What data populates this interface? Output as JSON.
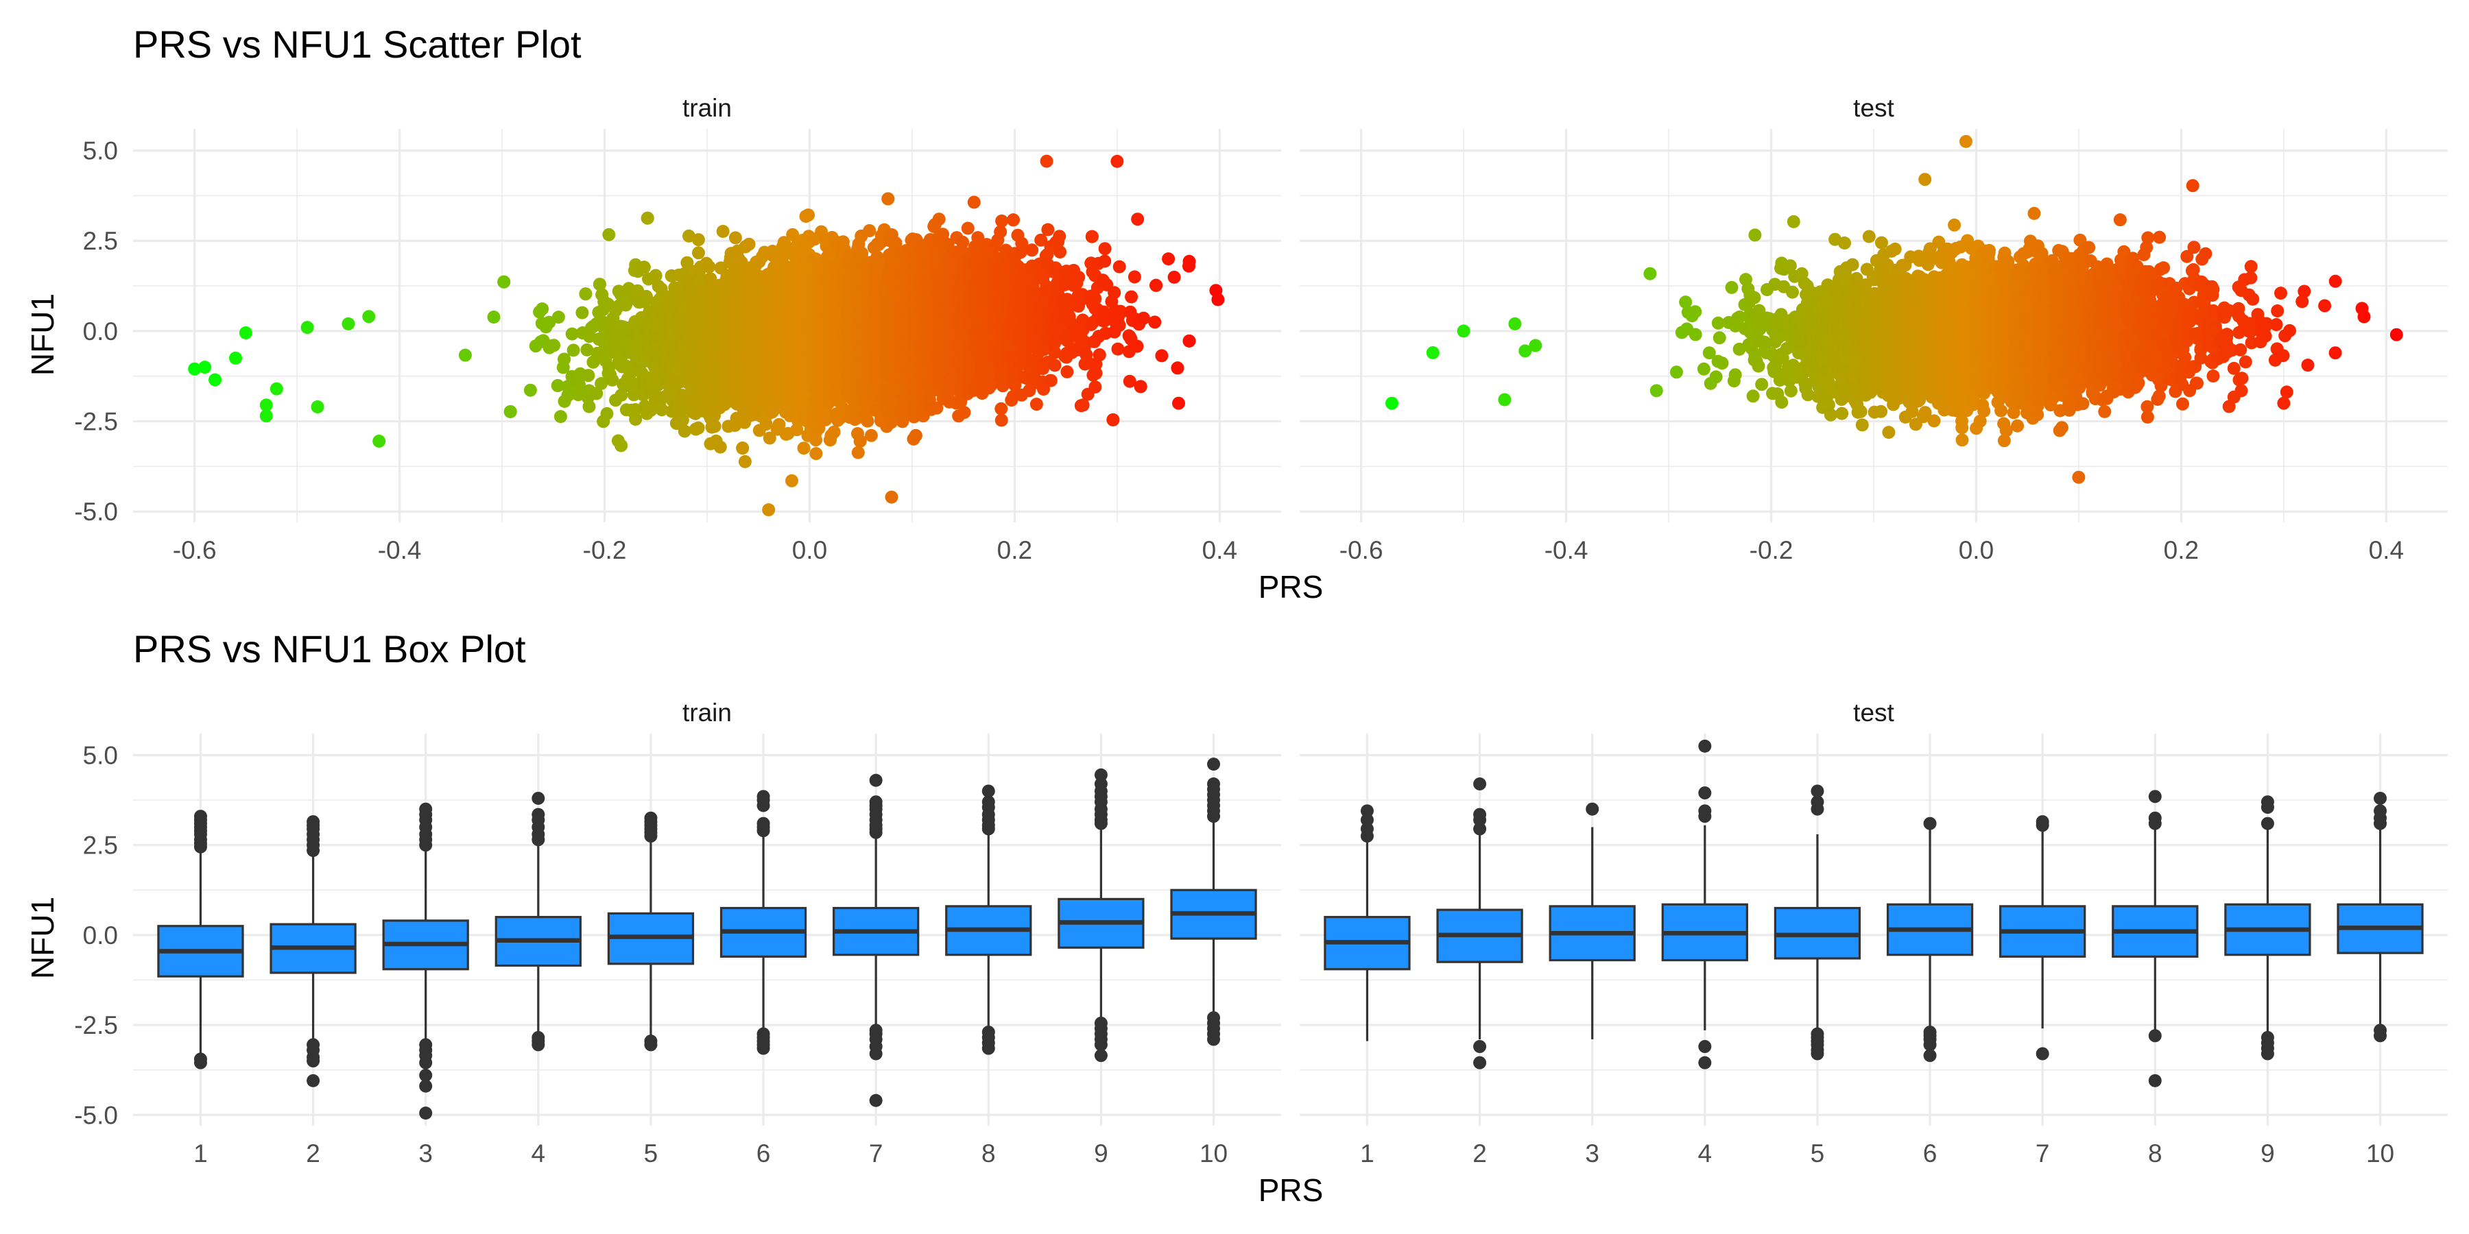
{
  "chart_data": [
    {
      "type": "scatter",
      "title": "PRS vs NFU1 Scatter Plot",
      "xlabel": "PRS",
      "ylabel": "NFU1",
      "xlim": [
        -0.66,
        0.46
      ],
      "ylim": [
        -5.3,
        5.6
      ],
      "x_ticks": [
        -0.6,
        -0.4,
        -0.2,
        0.0,
        0.2,
        0.4
      ],
      "x_tick_labels": [
        "-0.6",
        "-0.4",
        "-0.2",
        "0.0",
        "0.2",
        "0.4"
      ],
      "y_ticks": [
        -5,
        -2.5,
        0,
        2.5,
        5
      ],
      "y_tick_labels": [
        "-5.0",
        "-2.5",
        "0.0",
        "2.5",
        "5.0"
      ],
      "color_scale": {
        "low": "#00ff00",
        "mid": "#e08a00",
        "high": "#ff0000",
        "x_low": -0.6,
        "x_high": 0.42
      },
      "grid": true,
      "legend": "none",
      "panels": [
        {
          "name": "train",
          "n_points": 9000,
          "x_sd": 0.1,
          "y_sd": 1.0,
          "slope": 2.2,
          "x_center": 0.04,
          "extreme_points": [
            {
              "x": -0.6,
              "y": -1.05
            },
            {
              "x": -0.59,
              "y": -1.0
            },
            {
              "x": -0.58,
              "y": -1.35
            },
            {
              "x": -0.56,
              "y": -0.75
            },
            {
              "x": -0.55,
              "y": -0.05
            },
            {
              "x": -0.53,
              "y": -2.05
            },
            {
              "x": -0.53,
              "y": -2.35
            },
            {
              "x": -0.52,
              "y": -1.6
            },
            {
              "x": -0.49,
              "y": 0.1
            },
            {
              "x": -0.48,
              "y": -2.1
            },
            {
              "x": -0.45,
              "y": 0.2
            },
            {
              "x": -0.43,
              "y": 0.4
            },
            {
              "x": -0.42,
              "y": -3.05
            },
            {
              "x": -0.04,
              "y": -4.95
            },
            {
              "x": 0.08,
              "y": -4.6
            },
            {
              "x": 0.3,
              "y": 4.7
            },
            {
              "x": 0.32,
              "y": 3.1
            },
            {
              "x": 0.36,
              "y": -2.0
            },
            {
              "x": 0.37,
              "y": 1.8
            },
            {
              "x": 0.35,
              "y": 2.0
            }
          ]
        },
        {
          "name": "test",
          "n_points": 4500,
          "x_sd": 0.1,
          "y_sd": 0.9,
          "slope": 0.9,
          "x_center": 0.02,
          "extreme_points": [
            {
              "x": -0.57,
              "y": -2.0
            },
            {
              "x": -0.53,
              "y": -0.6
            },
            {
              "x": -0.5,
              "y": 0.0
            },
            {
              "x": -0.46,
              "y": -1.9
            },
            {
              "x": -0.45,
              "y": 0.2
            },
            {
              "x": -0.44,
              "y": -0.55
            },
            {
              "x": -0.43,
              "y": -0.4
            },
            {
              "x": -0.01,
              "y": 5.25
            },
            {
              "x": -0.05,
              "y": 4.2
            },
            {
              "x": 0.1,
              "y": -4.05
            },
            {
              "x": 0.41,
              "y": -0.1
            },
            {
              "x": 0.34,
              "y": 0.7
            },
            {
              "x": 0.32,
              "y": 1.1
            },
            {
              "x": 0.3,
              "y": -2.0
            }
          ]
        }
      ]
    },
    {
      "type": "box",
      "title": "PRS vs NFU1 Box Plot",
      "xlabel": "PRS",
      "ylabel": "NFU1",
      "categories": [
        "1",
        "2",
        "3",
        "4",
        "5",
        "6",
        "7",
        "8",
        "9",
        "10"
      ],
      "ylim": [
        -5.3,
        5.6
      ],
      "y_ticks": [
        -5,
        -2.5,
        0,
        2.5,
        5
      ],
      "y_tick_labels": [
        "-5.0",
        "-2.5",
        "0.0",
        "2.5",
        "5.0"
      ],
      "box_color": "#1e90ff",
      "line_color": "#333333",
      "grid": true,
      "legend": "none",
      "panels": [
        {
          "name": "train",
          "boxes": [
            {
              "q1": -1.15,
              "median": -0.45,
              "q3": 0.25,
              "low": -3.3,
              "high": 2.35,
              "outliers": [
                -3.55,
                -3.45,
                2.45,
                2.55,
                2.65,
                2.8,
                2.9,
                3.0,
                3.1,
                3.2,
                3.3
              ]
            },
            {
              "q1": -1.05,
              "median": -0.35,
              "q3": 0.3,
              "low": -2.95,
              "high": 2.25,
              "outliers": [
                -3.05,
                -3.2,
                -3.4,
                -3.5,
                -4.05,
                2.35,
                2.5,
                2.65,
                2.8,
                2.95,
                3.05,
                3.15
              ]
            },
            {
              "q1": -0.95,
              "median": -0.25,
              "q3": 0.4,
              "low": -2.95,
              "high": 2.4,
              "outliers": [
                -3.05,
                -3.2,
                -3.35,
                -3.55,
                -3.9,
                -4.2,
                -4.95,
                2.5,
                2.65,
                2.8,
                3.0,
                3.2,
                3.35,
                3.5
              ]
            },
            {
              "q1": -0.85,
              "median": -0.15,
              "q3": 0.5,
              "low": -2.75,
              "high": 2.55,
              "outliers": [
                -2.85,
                -2.95,
                -3.05,
                2.65,
                2.8,
                3.0,
                3.2,
                3.35,
                3.8
              ]
            },
            {
              "q1": -0.8,
              "median": -0.05,
              "q3": 0.6,
              "low": -2.85,
              "high": 2.65,
              "outliers": [
                -2.95,
                -3.05,
                2.75,
                2.85,
                2.95,
                3.05,
                3.15,
                3.25
              ]
            },
            {
              "q1": -0.6,
              "median": 0.1,
              "q3": 0.75,
              "low": -2.65,
              "high": 2.8,
              "outliers": [
                -2.75,
                -2.85,
                -2.95,
                -3.05,
                -3.15,
                2.9,
                3.0,
                3.1,
                3.6,
                3.75,
                3.85
              ]
            },
            {
              "q1": -0.55,
              "median": 0.1,
              "q3": 0.75,
              "low": -2.55,
              "high": 2.75,
              "outliers": [
                -2.65,
                -2.75,
                -2.9,
                -3.1,
                -3.3,
                -4.6,
                2.85,
                2.95,
                3.05,
                3.2,
                3.35,
                3.5,
                3.6,
                3.7,
                4.3
              ]
            },
            {
              "q1": -0.55,
              "median": 0.15,
              "q3": 0.8,
              "low": -2.6,
              "high": 2.85,
              "outliers": [
                -2.7,
                -2.85,
                -3.0,
                -3.15,
                2.95,
                3.05,
                3.2,
                3.35,
                3.55,
                3.7,
                4.0
              ]
            },
            {
              "q1": -0.35,
              "median": 0.35,
              "q3": 1.0,
              "low": -2.35,
              "high": 3.0,
              "outliers": [
                -2.45,
                -2.6,
                -2.75,
                -2.9,
                -3.05,
                -3.35,
                3.1,
                3.2,
                3.35,
                3.5,
                3.7,
                3.85,
                4.0,
                4.2,
                4.45
              ]
            },
            {
              "q1": -0.1,
              "median": 0.6,
              "q3": 1.25,
              "low": -2.2,
              "high": 3.2,
              "outliers": [
                -2.3,
                -2.45,
                -2.6,
                -2.75,
                -2.9,
                3.3,
                3.45,
                3.6,
                3.75,
                3.9,
                4.05,
                4.2,
                4.75
              ]
            }
          ]
        },
        {
          "name": "test",
          "boxes": [
            {
              "q1": -0.95,
              "median": -0.2,
              "q3": 0.5,
              "low": -2.95,
              "high": 2.6,
              "outliers": [
                2.75,
                2.95,
                3.2,
                3.45
              ]
            },
            {
              "q1": -0.75,
              "median": 0.0,
              "q3": 0.7,
              "low": -2.9,
              "high": 2.85,
              "outliers": [
                -3.1,
                -3.55,
                2.95,
                3.2,
                3.35,
                4.2
              ]
            },
            {
              "q1": -0.7,
              "median": 0.05,
              "q3": 0.8,
              "low": -2.9,
              "high": 3.0,
              "outliers": [
                3.5
              ]
            },
            {
              "q1": -0.7,
              "median": 0.05,
              "q3": 0.85,
              "low": -2.65,
              "high": 3.05,
              "outliers": [
                -3.1,
                -3.55,
                3.3,
                3.45,
                3.95,
                5.25
              ]
            },
            {
              "q1": -0.65,
              "median": 0.0,
              "q3": 0.75,
              "low": -2.65,
              "high": 2.8,
              "outliers": [
                -2.75,
                -2.85,
                -2.95,
                -3.05,
                -3.2,
                -3.3,
                3.5,
                3.7,
                4.0
              ]
            },
            {
              "q1": -0.55,
              "median": 0.15,
              "q3": 0.85,
              "low": -2.6,
              "high": 2.95,
              "outliers": [
                -2.7,
                -2.8,
                -2.9,
                -3.05,
                -3.35,
                3.1
              ]
            },
            {
              "q1": -0.6,
              "median": 0.1,
              "q3": 0.8,
              "low": -2.6,
              "high": 2.95,
              "outliers": [
                -3.3,
                3.05,
                3.15
              ]
            },
            {
              "q1": -0.6,
              "median": 0.1,
              "q3": 0.8,
              "low": -2.65,
              "high": 2.95,
              "outliers": [
                -2.8,
                -4.05,
                3.1,
                3.25,
                3.85
              ]
            },
            {
              "q1": -0.55,
              "median": 0.15,
              "q3": 0.85,
              "low": -2.7,
              "high": 2.95,
              "outliers": [
                -2.85,
                -3.0,
                -3.15,
                -3.3,
                3.1,
                3.55,
                3.7
              ]
            },
            {
              "q1": -0.5,
              "median": 0.2,
              "q3": 0.85,
              "low": -2.55,
              "high": 3.0,
              "outliers": [
                -2.65,
                -2.8,
                3.1,
                3.25,
                3.45,
                3.8
              ]
            }
          ]
        }
      ]
    }
  ]
}
